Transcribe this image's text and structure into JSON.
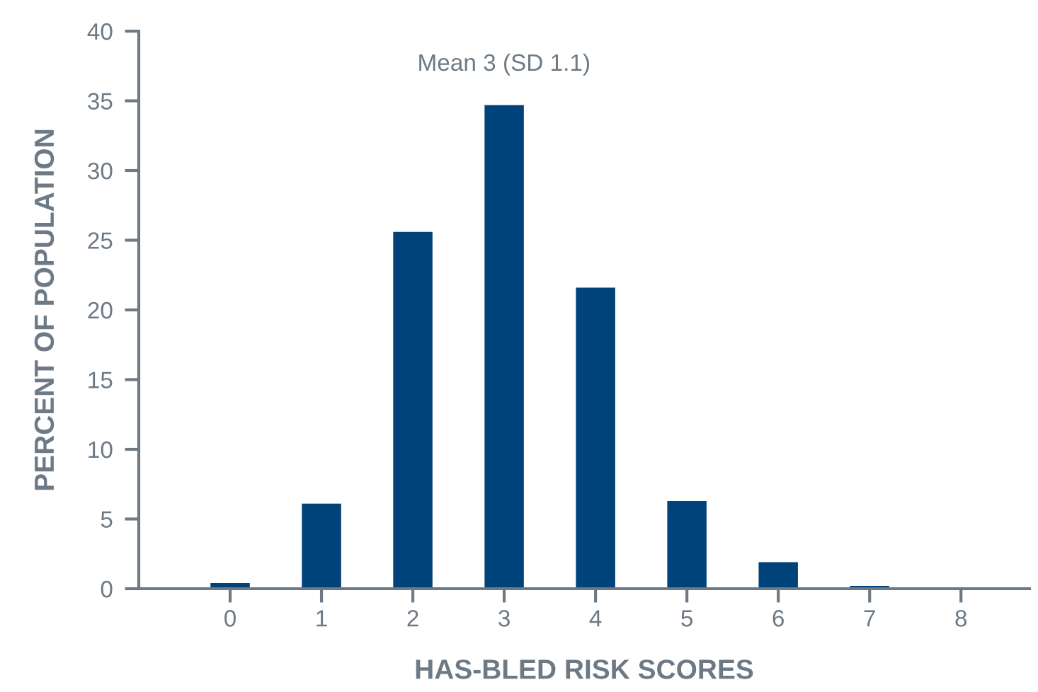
{
  "chart_data": {
    "type": "bar",
    "xlabel": "HAS-BLED RISK SCORES",
    "ylabel": "PERCENT OF POPULATION",
    "categories": [
      "0",
      "1",
      "2",
      "3",
      "4",
      "5",
      "6",
      "7",
      "8"
    ],
    "values": [
      0.4,
      6.1,
      25.6,
      34.7,
      21.6,
      6.3,
      1.9,
      0.2,
      0
    ],
    "color": "#00427a",
    "ylim": [
      0,
      40
    ],
    "yticks": [
      0,
      5,
      10,
      15,
      20,
      25,
      30,
      35,
      40
    ],
    "annotations": [
      "Mean 3 (SD 1.1)"
    ],
    "grid": false,
    "legend": false
  }
}
